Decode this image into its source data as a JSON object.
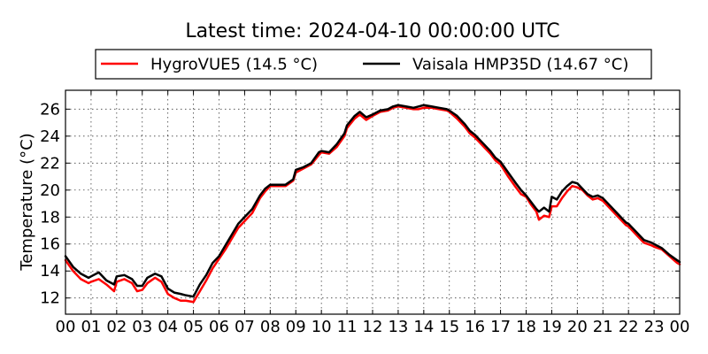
{
  "chart_data": {
    "type": "line",
    "title": "Latest time: 2024-04-10 00:00:00 UTC",
    "ylabel": "Temperature (°C)",
    "xlabel": "",
    "xlim": [
      0,
      24
    ],
    "ylim": [
      10.8,
      27.4
    ],
    "x_ticks": [
      0,
      1,
      2,
      3,
      4,
      5,
      6,
      7,
      8,
      9,
      10,
      11,
      12,
      13,
      14,
      15,
      16,
      17,
      18,
      19,
      20,
      21,
      22,
      23,
      24
    ],
    "x_tick_labels": [
      "00",
      "01",
      "02",
      "03",
      "04",
      "05",
      "06",
      "07",
      "08",
      "09",
      "10",
      "11",
      "12",
      "13",
      "14",
      "15",
      "16",
      "17",
      "18",
      "19",
      "20",
      "21",
      "22",
      "23",
      "00"
    ],
    "y_ticks": [
      12,
      14,
      16,
      18,
      20,
      22,
      24,
      26
    ],
    "y_tick_labels": [
      "12",
      "14",
      "16",
      "18",
      "20",
      "22",
      "24",
      "26"
    ],
    "grid": true,
    "legend_position": "top-center",
    "series": [
      {
        "name": "HygroVUE5 (14.5 °C)",
        "color": "#ff0000",
        "x": [
          0,
          0.3,
          0.6,
          0.9,
          1.0,
          1.3,
          1.6,
          1.9,
          2.0,
          2.3,
          2.6,
          2.8,
          3.0,
          3.2,
          3.5,
          3.75,
          4.0,
          4.25,
          4.5,
          4.7,
          5.0,
          5.25,
          5.5,
          5.75,
          6.0,
          6.25,
          6.5,
          6.75,
          7.0,
          7.3,
          7.6,
          7.8,
          8.0,
          8.3,
          8.6,
          8.9,
          9.0,
          9.3,
          9.6,
          9.9,
          10.0,
          10.3,
          10.6,
          10.9,
          11.0,
          11.3,
          11.5,
          11.75,
          12.0,
          12.3,
          12.6,
          12.8,
          13.0,
          13.3,
          13.6,
          13.8,
          14.0,
          14.3,
          14.6,
          14.9,
          15.0,
          15.3,
          15.6,
          15.8,
          16.0,
          16.3,
          16.6,
          16.8,
          17.0,
          17.3,
          17.6,
          17.8,
          18.0,
          18.2,
          18.4,
          18.5,
          18.7,
          18.9,
          19.0,
          19.2,
          19.4,
          19.6,
          19.8,
          20.0,
          20.2,
          20.4,
          20.6,
          20.8,
          21.0,
          21.3,
          21.6,
          21.9,
          22.0,
          22.3,
          22.6,
          22.9,
          23.0,
          23.3,
          23.6,
          23.9,
          24.0
        ],
        "y": [
          14.8,
          14.0,
          13.4,
          13.1,
          13.2,
          13.4,
          13.0,
          12.5,
          13.2,
          13.4,
          13.1,
          12.5,
          12.6,
          13.1,
          13.5,
          13.2,
          12.3,
          12.0,
          11.8,
          11.8,
          11.7,
          12.5,
          13.3,
          14.2,
          14.9,
          15.6,
          16.4,
          17.2,
          17.7,
          18.3,
          19.4,
          19.9,
          20.3,
          20.3,
          20.3,
          20.7,
          21.3,
          21.6,
          21.9,
          22.6,
          22.8,
          22.7,
          23.2,
          24.0,
          24.6,
          25.3,
          25.6,
          25.2,
          25.5,
          25.8,
          25.9,
          26.1,
          26.2,
          26.1,
          26.0,
          26.0,
          26.1,
          26.1,
          26.0,
          25.9,
          25.8,
          25.3,
          24.7,
          24.2,
          23.9,
          23.3,
          22.7,
          22.2,
          21.9,
          21.0,
          20.2,
          19.7,
          19.5,
          18.9,
          18.4,
          17.8,
          18.1,
          18.0,
          18.8,
          18.8,
          19.4,
          19.9,
          20.3,
          20.2,
          20.0,
          19.6,
          19.3,
          19.4,
          19.2,
          18.6,
          18.0,
          17.4,
          17.3,
          16.7,
          16.1,
          15.9,
          15.8,
          15.6,
          15.1,
          14.6,
          14.5
        ]
      },
      {
        "name": "Vaisala HMP35D (14.67 °C)",
        "color": "#000000",
        "x": [
          0,
          0.3,
          0.6,
          0.9,
          1.0,
          1.3,
          1.6,
          1.9,
          2.0,
          2.3,
          2.6,
          2.8,
          3.0,
          3.2,
          3.5,
          3.75,
          4.0,
          4.25,
          4.5,
          4.7,
          5.0,
          5.25,
          5.5,
          5.75,
          6.0,
          6.25,
          6.5,
          6.75,
          7.0,
          7.3,
          7.6,
          7.8,
          8.0,
          8.3,
          8.6,
          8.9,
          9.0,
          9.3,
          9.6,
          9.9,
          10.0,
          10.3,
          10.6,
          10.9,
          11.0,
          11.3,
          11.5,
          11.75,
          12.0,
          12.3,
          12.6,
          12.8,
          13.0,
          13.3,
          13.6,
          13.8,
          14.0,
          14.3,
          14.6,
          14.9,
          15.0,
          15.3,
          15.6,
          15.8,
          16.0,
          16.3,
          16.6,
          16.8,
          17.0,
          17.3,
          17.6,
          17.8,
          18.0,
          18.2,
          18.4,
          18.5,
          18.7,
          18.9,
          19.0,
          19.2,
          19.4,
          19.6,
          19.8,
          20.0,
          20.2,
          20.4,
          20.6,
          20.8,
          21.0,
          21.3,
          21.6,
          21.9,
          22.0,
          22.3,
          22.6,
          22.9,
          23.0,
          23.3,
          23.6,
          23.9,
          24.0
        ],
        "y": [
          15.1,
          14.3,
          13.8,
          13.5,
          13.6,
          13.9,
          13.3,
          13.0,
          13.6,
          13.7,
          13.4,
          12.9,
          12.9,
          13.5,
          13.8,
          13.6,
          12.7,
          12.4,
          12.3,
          12.2,
          12.1,
          13.0,
          13.7,
          14.6,
          15.1,
          15.9,
          16.7,
          17.5,
          18.0,
          18.6,
          19.6,
          20.1,
          20.4,
          20.4,
          20.4,
          20.8,
          21.5,
          21.7,
          22.0,
          22.8,
          22.9,
          22.8,
          23.4,
          24.2,
          24.8,
          25.5,
          25.8,
          25.4,
          25.6,
          25.9,
          26.0,
          26.2,
          26.3,
          26.2,
          26.1,
          26.2,
          26.3,
          26.2,
          26.1,
          26.0,
          25.9,
          25.5,
          24.9,
          24.4,
          24.1,
          23.5,
          22.9,
          22.4,
          22.1,
          21.3,
          20.5,
          20.0,
          19.6,
          19.1,
          18.6,
          18.4,
          18.7,
          18.4,
          19.5,
          19.3,
          19.9,
          20.3,
          20.6,
          20.5,
          20.1,
          19.7,
          19.5,
          19.6,
          19.4,
          18.8,
          18.2,
          17.6,
          17.5,
          16.9,
          16.3,
          16.1,
          16.0,
          15.7,
          15.2,
          14.8,
          14.67
        ]
      }
    ]
  }
}
